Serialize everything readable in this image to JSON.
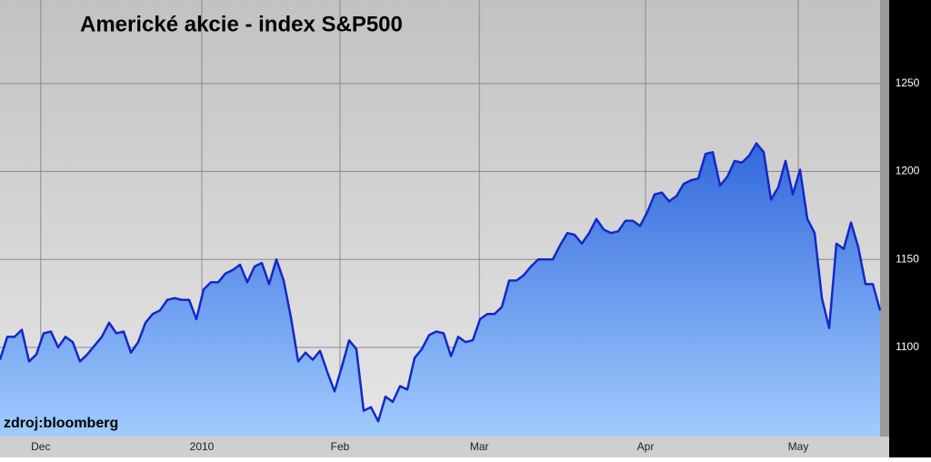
{
  "chart_data": {
    "type": "area",
    "title": "Americké akcie - index S&P500",
    "source": "zdroj:bloomberg",
    "x": [
      0,
      1,
      2,
      3,
      4,
      5,
      6,
      7,
      8,
      9,
      10,
      11,
      12,
      13,
      14,
      15,
      16,
      17,
      18,
      19,
      20,
      21,
      22,
      23,
      24,
      25,
      26,
      27,
      28,
      29,
      30,
      31,
      32,
      33,
      34,
      35,
      36,
      37,
      38,
      39,
      40,
      41,
      42,
      43,
      44,
      45,
      46,
      47,
      48,
      49,
      50,
      51,
      52,
      53,
      54,
      55,
      56,
      57,
      58,
      59,
      60,
      61,
      62,
      63,
      64,
      65,
      66,
      67,
      68,
      69,
      70,
      71,
      72,
      73,
      74,
      75,
      76,
      77,
      78,
      79,
      80,
      81,
      82,
      83,
      84,
      85,
      86,
      87,
      88,
      89,
      90,
      91,
      92,
      93,
      94,
      95,
      96,
      97,
      98,
      99,
      100,
      101,
      102,
      103,
      104,
      105,
      106,
      107,
      108,
      109,
      110,
      111,
      112,
      113,
      114,
      115,
      116,
      117,
      118,
      119,
      120,
      121
    ],
    "values": [
      1093,
      1106,
      1106,
      1110,
      1092,
      1096,
      1108,
      1109,
      1100,
      1106,
      1103,
      1092,
      1096,
      1101,
      1106,
      1114,
      1108,
      1109,
      1097,
      1103,
      1114,
      1119,
      1121,
      1127,
      1128,
      1127,
      1127,
      1116,
      1133,
      1137,
      1137,
      1142,
      1144,
      1147,
      1137,
      1146,
      1148,
      1136,
      1150,
      1138,
      1117,
      1092,
      1097,
      1093,
      1098,
      1086,
      1075,
      1089,
      1104,
      1099,
      1064,
      1066,
      1058,
      1072,
      1069,
      1078,
      1076,
      1094,
      1099,
      1107,
      1109,
      1108,
      1095,
      1106,
      1103,
      1104,
      1116,
      1119,
      1119,
      1123,
      1138,
      1138,
      1141,
      1146,
      1150,
      1150,
      1150,
      1158,
      1165,
      1164,
      1159,
      1165,
      1173,
      1167,
      1165,
      1166,
      1172,
      1172,
      1169,
      1177,
      1187,
      1188,
      1183,
      1186,
      1193,
      1195,
      1196,
      1210,
      1211,
      1192,
      1197,
      1206,
      1205,
      1209,
      1216,
      1211,
      1184,
      1191,
      1206,
      1187,
      1201,
      1173,
      1165,
      1128,
      1111,
      1159,
      1156,
      1171,
      1157,
      1136,
      1136,
      1121
    ],
    "color": "#1428c8",
    "xlim": [
      0,
      121
    ],
    "xticks": [
      {
        "value": 5.6,
        "label": "Dec"
      },
      {
        "value": 27.75,
        "label": "2010"
      },
      {
        "value": 46.75,
        "label": "Feb"
      },
      {
        "value": 65.9,
        "label": "Mar"
      },
      {
        "value": 88.75,
        "label": "Apr"
      },
      {
        "value": 109.75,
        "label": "May"
      }
    ],
    "ylim": [
      1049.3,
      1297.5
    ],
    "yticks": [
      1100,
      1150,
      1200,
      1250
    ],
    "grid": true
  }
}
